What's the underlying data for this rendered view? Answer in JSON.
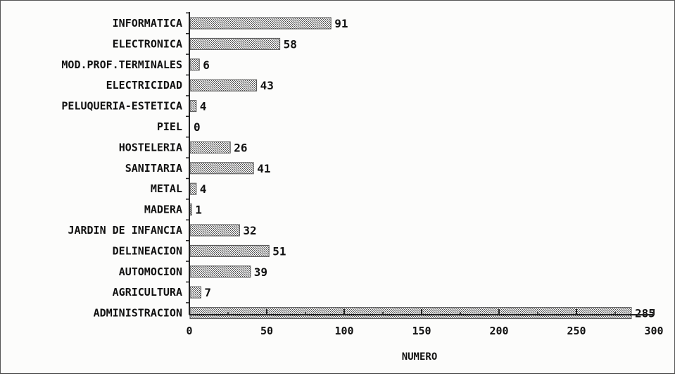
{
  "chart_data": {
    "type": "bar",
    "orientation": "horizontal",
    "categories": [
      "INFORMATICA",
      "ELECTRONICA",
      "MOD.PROF.TERMINALES",
      "ELECTRICIDAD",
      "PELUQUERIA-ESTETICA",
      "PIEL",
      "HOSTELERIA",
      "SANITARIA",
      "METAL",
      "MADERA",
      "JARDIN DE INFANCIA",
      "DELINEACION",
      "AUTOMOCION",
      "AGRICULTURA",
      "ADMINISTRACION"
    ],
    "values": [
      91,
      58,
      6,
      43,
      4,
      0,
      26,
      41,
      4,
      1,
      32,
      51,
      39,
      7,
      285
    ],
    "value_labels": [
      "91",
      "58",
      "6",
      "43",
      "4",
      "0",
      "26",
      "41",
      "4",
      "1",
      "32",
      "51",
      "39",
      "7",
      "285"
    ],
    "title": "",
    "xlabel": "NUMERO",
    "ylabel": "",
    "xlim": [
      0,
      300
    ],
    "xticks": [
      0,
      50,
      100,
      150,
      200,
      250,
      300
    ],
    "xtick_labels": [
      "0",
      "50",
      "100",
      "150",
      "200",
      "250",
      "300"
    ],
    "grid": false,
    "legend": "none",
    "bar_color": "#9a9a9a",
    "bar_border_color": "#555555"
  }
}
